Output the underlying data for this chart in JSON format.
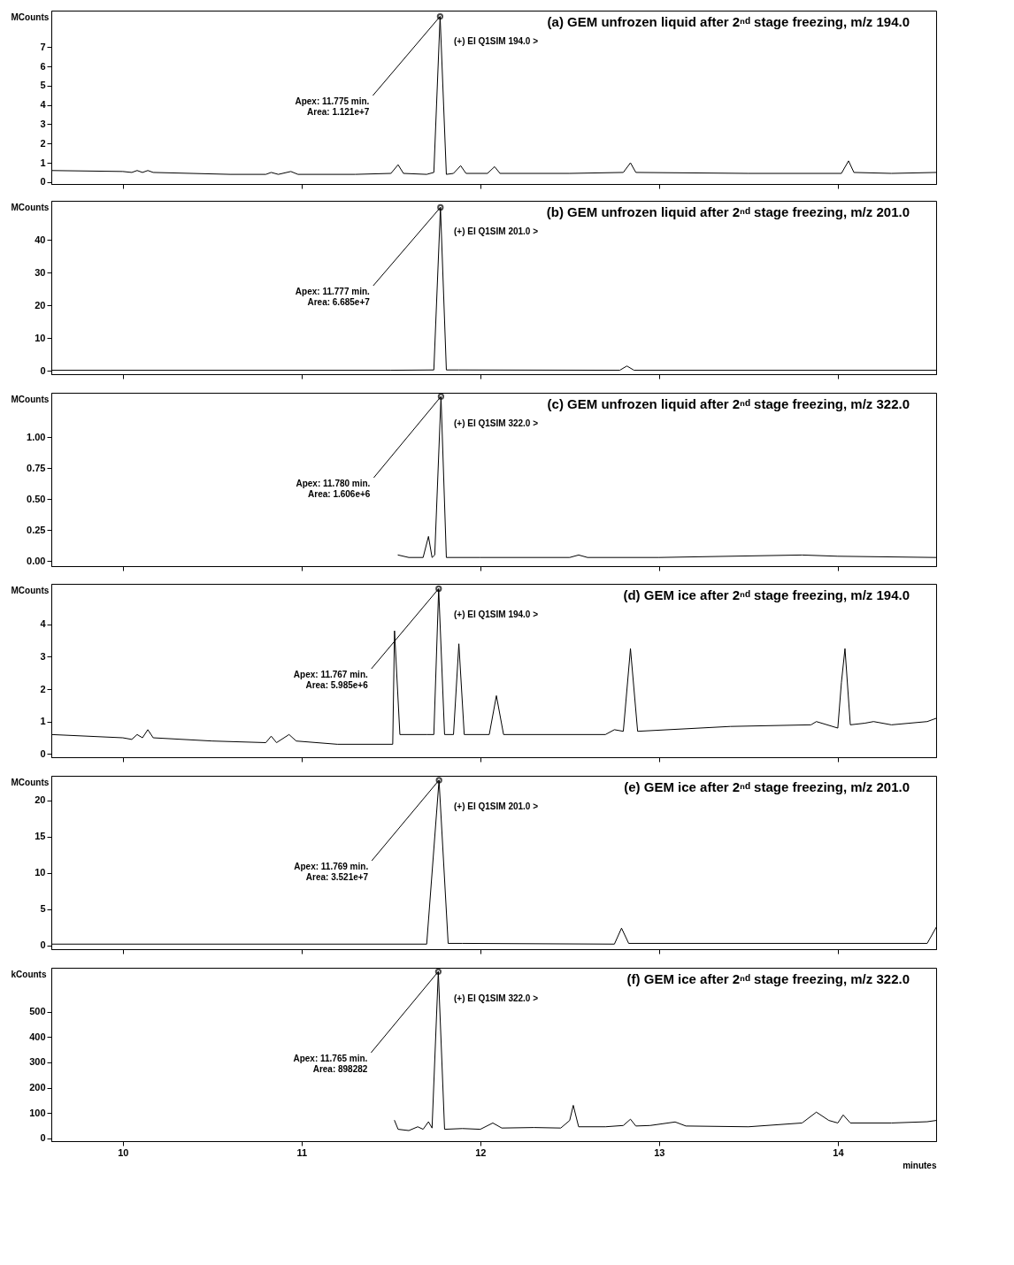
{
  "chart_data": [
    {
      "type": "line",
      "title": "(a) GEM unfrozen liquid after 2ⁿᵈ stage freezing, m/z 194.0",
      "ylabel": "MCounts",
      "color": "#000000",
      "grid": false,
      "tick_labels": "y",
      "xlim": [
        9.6,
        14.55
      ],
      "xticks": [
        10,
        11,
        12,
        13,
        14
      ],
      "ylim": [
        -0.1,
        8.9
      ],
      "yticks": [
        0,
        1,
        2,
        3,
        4,
        5,
        6,
        7
      ],
      "x": [
        9.6,
        10.0,
        10.05,
        10.08,
        10.11,
        10.14,
        10.17,
        10.6,
        10.8,
        10.83,
        10.87,
        10.94,
        10.98,
        11.3,
        11.5,
        11.54,
        11.57,
        11.7,
        11.74,
        11.775,
        11.81,
        11.85,
        11.89,
        11.92,
        12.04,
        12.08,
        12.11,
        12.5,
        12.8,
        12.84,
        12.87,
        13.5,
        14.02,
        14.06,
        14.09,
        14.3,
        14.55
      ],
      "values": [
        0.6,
        0.55,
        0.5,
        0.6,
        0.5,
        0.6,
        0.5,
        0.4,
        0.4,
        0.5,
        0.4,
        0.55,
        0.4,
        0.4,
        0.45,
        0.9,
        0.45,
        0.4,
        0.5,
        8.6,
        0.4,
        0.45,
        0.85,
        0.45,
        0.45,
        0.8,
        0.45,
        0.45,
        0.5,
        1.0,
        0.5,
        0.45,
        0.45,
        1.1,
        0.5,
        0.45,
        0.5
      ],
      "annotations": [
        "(+) EI Q1SIM 194.0 >",
        {
          "text": "Apex: 11.775 min.\nArea: 1.121e+7",
          "x": 11.775,
          "y": 8.6
        }
      ]
    },
    {
      "type": "line",
      "title": "(b) GEM unfrozen liquid after 2ⁿᵈ stage freezing, m/z 201.0",
      "ylabel": "MCounts",
      "color": "#000000",
      "grid": false,
      "tick_labels": "y",
      "xlim": [
        9.6,
        14.55
      ],
      "xticks": [
        10,
        11,
        12,
        13,
        14
      ],
      "ylim": [
        -1,
        52
      ],
      "yticks": [
        0,
        10,
        20,
        30,
        40
      ],
      "x": [
        9.6,
        11.5,
        11.74,
        11.777,
        11.81,
        11.88,
        12.78,
        12.82,
        12.86,
        14.55
      ],
      "values": [
        0.2,
        0.2,
        0.3,
        50,
        0.3,
        0.3,
        0.2,
        1.5,
        0.2,
        0.2
      ],
      "annotations": [
        "(+) EI Q1SIM 201.0 >",
        {
          "text": "Apex: 11.777 min.\nArea: 6.685e+7",
          "x": 11.777,
          "y": 50
        }
      ]
    },
    {
      "type": "line",
      "title": "(c) GEM unfrozen liquid after 2ⁿᵈ stage freezing, m/z 322.0",
      "ylabel": "MCounts",
      "color": "#000000",
      "grid": false,
      "tick_labels": "y",
      "xlim": [
        9.6,
        14.55
      ],
      "xticks": [
        10,
        11,
        12,
        13,
        14
      ],
      "ylim": [
        -0.04,
        1.36
      ],
      "yticks": [
        {
          "value": 0,
          "label": "0.00"
        },
        0.25,
        {
          "value": 0.5,
          "label": "0.50"
        },
        0.75,
        {
          "value": 1,
          "label": "1.00"
        }
      ],
      "x": [
        11.54,
        11.6,
        11.68,
        11.71,
        11.73,
        11.745,
        11.78,
        11.81,
        12.0,
        12.5,
        12.55,
        12.6,
        13.0,
        13.8,
        14.0,
        14.55
      ],
      "values": [
        0.05,
        0.03,
        0.03,
        0.2,
        0.03,
        0.05,
        1.33,
        0.03,
        0.03,
        0.03,
        0.05,
        0.03,
        0.03,
        0.05,
        0.04,
        0.03
      ],
      "annotations": [
        "(+) EI Q1SIM 322.0 >",
        {
          "text": "Apex: 11.780 min.\nArea: 1.606e+6",
          "x": 11.78,
          "y": 1.33
        }
      ]
    },
    {
      "type": "line",
      "title": "(d) GEM ice after 2ⁿᵈ stage freezing, m/z 194.0",
      "ylabel": "MCounts",
      "color": "#000000",
      "grid": false,
      "tick_labels": "y",
      "xlim": [
        9.6,
        14.55
      ],
      "xticks": [
        10,
        11,
        12,
        13,
        14
      ],
      "ylim": [
        -0.1,
        5.25
      ],
      "yticks": [
        0,
        1,
        2,
        3,
        4
      ],
      "x": [
        9.6,
        10.0,
        10.05,
        10.08,
        10.11,
        10.14,
        10.17,
        10.5,
        10.8,
        10.83,
        10.86,
        10.93,
        10.97,
        11.2,
        11.51,
        11.52,
        11.55,
        11.7,
        11.74,
        11.767,
        11.8,
        11.85,
        11.88,
        11.91,
        12.05,
        12.09,
        12.13,
        12.7,
        12.75,
        12.8,
        12.84,
        12.88,
        13.4,
        13.85,
        13.88,
        14.0,
        14.02,
        14.04,
        14.07,
        14.15,
        14.2,
        14.3,
        14.5,
        14.55
      ],
      "values": [
        0.6,
        0.5,
        0.45,
        0.6,
        0.5,
        0.75,
        0.5,
        0.4,
        0.35,
        0.55,
        0.35,
        0.6,
        0.4,
        0.3,
        0.3,
        3.8,
        0.6,
        0.6,
        0.6,
        5.1,
        0.6,
        0.6,
        3.4,
        0.6,
        0.6,
        1.8,
        0.6,
        0.6,
        0.75,
        0.7,
        3.25,
        0.7,
        0.85,
        0.9,
        1.0,
        0.8,
        2.2,
        3.25,
        0.9,
        0.95,
        1.0,
        0.9,
        1.0,
        1.1
      ],
      "annotations": [
        "(+) EI Q1SIM 194.0 >",
        {
          "text": "Apex: 11.767 min.\nArea: 5.985e+6",
          "x": 11.767,
          "y": 5.1
        }
      ]
    },
    {
      "type": "line",
      "title": "(e) GEM ice after 2ⁿᵈ stage freezing, m/z 201.0",
      "ylabel": "MCounts",
      "color": "#000000",
      "grid": false,
      "tick_labels": "y",
      "xlim": [
        9.6,
        14.55
      ],
      "xticks": [
        10,
        11,
        12,
        13,
        14
      ],
      "ylim": [
        -0.5,
        23.4
      ],
      "yticks": [
        0,
        5,
        10,
        15,
        20
      ],
      "x": [
        9.6,
        11.7,
        11.769,
        11.82,
        11.9,
        12.75,
        12.79,
        12.83,
        14.5,
        14.55
      ],
      "values": [
        0.2,
        0.2,
        22.8,
        0.3,
        0.3,
        0.2,
        2.4,
        0.3,
        0.3,
        2.5
      ],
      "annotations": [
        "(+) EI Q1SIM 201.0 >",
        {
          "text": "Apex: 11.769 min.\nArea: 3.521e+7",
          "x": 11.769,
          "y": 22.8
        }
      ]
    },
    {
      "type": "line",
      "title": "(f) GEM ice after 2ⁿᵈ stage freezing, m/z 322.0",
      "ylabel": "kCounts",
      "xlabel": "minutes",
      "color": "#000000",
      "grid": false,
      "xlim": [
        9.6,
        14.55
      ],
      "xticks": [
        10,
        11,
        12,
        13,
        14
      ],
      "ylim": [
        -12,
        675
      ],
      "yticks": [
        0,
        100,
        200,
        300,
        400,
        500
      ],
      "x": [
        11.52,
        11.54,
        11.6,
        11.65,
        11.68,
        11.71,
        11.73,
        11.765,
        11.8,
        11.9,
        12.0,
        12.07,
        12.12,
        12.3,
        12.45,
        12.5,
        12.52,
        12.55,
        12.7,
        12.8,
        12.84,
        12.87,
        12.95,
        13.09,
        13.15,
        13.5,
        13.8,
        13.88,
        13.95,
        14.0,
        14.03,
        14.07,
        14.3,
        14.5,
        14.55
      ],
      "values": [
        70,
        35,
        30,
        45,
        35,
        65,
        40,
        660,
        35,
        38,
        35,
        60,
        40,
        42,
        40,
        70,
        130,
        45,
        45,
        50,
        75,
        48,
        50,
        64,
        48,
        45,
        60,
        103,
        70,
        60,
        92,
        60,
        60,
        65,
        70
      ],
      "annotations": [
        "(+) EI Q1SIM 322.0 >",
        {
          "text": "Apex: 11.765 min.\nArea: 898282",
          "x": 11.765,
          "y": 660
        }
      ]
    }
  ]
}
